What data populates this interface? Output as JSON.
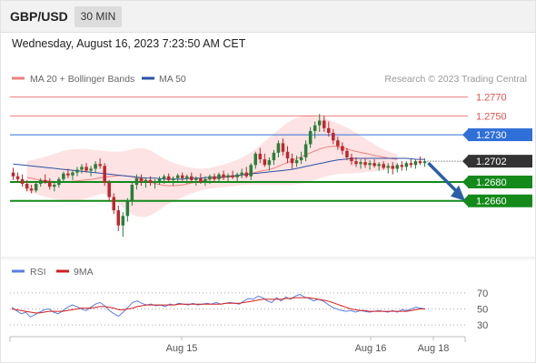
{
  "header": {
    "symbol": "GBP/USD",
    "timeframe": "30 MIN"
  },
  "datetime": "Wednesday, August 16, 2023 7:23:50 AM CET",
  "colors": {
    "bollinger": "#f08080",
    "bollinger_fill": "#fde3e3",
    "ma50": "#2a52a8",
    "up": "#26803a",
    "down": "#c0262c",
    "resistance": "#e84f4f",
    "pivot_line": "#2f6fd8",
    "support": "#138a1a",
    "rsi": "#5b7fe0",
    "rsi_ma": "#d42020",
    "arrow": "#2a5fa8"
  },
  "legend": {
    "bollinger": "MA 20 + Bollinger Bands",
    "ma50": "MA 50",
    "copyright": "Research © 2023 Trading Central"
  },
  "chart_data": {
    "type": "candlestick",
    "y_range": [
      1.26,
      1.2785
    ],
    "levels": [
      {
        "value": 1.277,
        "label": "1.2770",
        "kind": "resistance"
      },
      {
        "value": 1.275,
        "label": "1.2750",
        "kind": "resistance"
      },
      {
        "value": 1.273,
        "label": "1.2730",
        "kind": "pivot"
      },
      {
        "value": 1.268,
        "label": "1.2680",
        "kind": "support"
      },
      {
        "value": 1.266,
        "label": "1.2660",
        "kind": "support"
      }
    ],
    "last_price": {
      "value": 1.2702,
      "label": "1.2702"
    },
    "forecast_arrow": {
      "from": 1.2702,
      "to": 1.266
    },
    "x_labels": [
      "Aug 15",
      "Aug 16",
      "Aug 18"
    ],
    "candles": [
      [
        1.269,
        1.2695,
        1.2682,
        1.2686
      ],
      [
        1.2686,
        1.269,
        1.268,
        1.2683
      ],
      [
        1.2683,
        1.2688,
        1.2675,
        1.2678
      ],
      [
        1.2678,
        1.2682,
        1.267,
        1.2673
      ],
      [
        1.2673,
        1.2677,
        1.2668,
        1.2671
      ],
      [
        1.2671,
        1.268,
        1.2669,
        1.2678
      ],
      [
        1.2678,
        1.2684,
        1.2675,
        1.2682
      ],
      [
        1.2682,
        1.2688,
        1.2678,
        1.268
      ],
      [
        1.268,
        1.2684,
        1.2672,
        1.2675
      ],
      [
        1.2675,
        1.2679,
        1.267,
        1.2677
      ],
      [
        1.2677,
        1.2685,
        1.2674,
        1.2683
      ],
      [
        1.2683,
        1.2691,
        1.268,
        1.2689
      ],
      [
        1.2689,
        1.2694,
        1.2684,
        1.2687
      ],
      [
        1.2687,
        1.2692,
        1.2682,
        1.269
      ],
      [
        1.269,
        1.2696,
        1.2686,
        1.2693
      ],
      [
        1.2693,
        1.2699,
        1.2689,
        1.2696
      ],
      [
        1.2696,
        1.27,
        1.269,
        1.2692
      ],
      [
        1.2692,
        1.2697,
        1.2686,
        1.2694
      ],
      [
        1.2694,
        1.2702,
        1.269,
        1.2699
      ],
      [
        1.2699,
        1.2705,
        1.2694,
        1.2697
      ],
      [
        1.2697,
        1.27,
        1.2676,
        1.2679
      ],
      [
        1.2679,
        1.2682,
        1.266,
        1.2664
      ],
      [
        1.2664,
        1.2668,
        1.2646,
        1.265
      ],
      [
        1.265,
        1.2655,
        1.2628,
        1.2634
      ],
      [
        1.2634,
        1.2648,
        1.2622,
        1.2644
      ],
      [
        1.2644,
        1.2663,
        1.2638,
        1.266
      ],
      [
        1.266,
        1.268,
        1.2655,
        1.2677
      ],
      [
        1.2677,
        1.2688,
        1.2672,
        1.2684
      ],
      [
        1.2684,
        1.2688,
        1.2676,
        1.268
      ],
      [
        1.268,
        1.2685,
        1.2674,
        1.2682
      ],
      [
        1.2682,
        1.2686,
        1.2676,
        1.2679
      ],
      [
        1.2679,
        1.2683,
        1.2673,
        1.2681
      ],
      [
        1.2681,
        1.2686,
        1.2677,
        1.2683
      ],
      [
        1.2683,
        1.2688,
        1.2678,
        1.2686
      ],
      [
        1.2686,
        1.2689,
        1.268,
        1.2682
      ],
      [
        1.2682,
        1.2686,
        1.2676,
        1.2684
      ],
      [
        1.2684,
        1.2689,
        1.2679,
        1.2687
      ],
      [
        1.2687,
        1.269,
        1.2681,
        1.2684
      ],
      [
        1.2684,
        1.2688,
        1.2678,
        1.2686
      ],
      [
        1.2686,
        1.269,
        1.268,
        1.2682
      ],
      [
        1.2682,
        1.2686,
        1.2676,
        1.2684
      ],
      [
        1.2684,
        1.2689,
        1.2678,
        1.268
      ],
      [
        1.268,
        1.2686,
        1.2676,
        1.2683
      ],
      [
        1.2683,
        1.2688,
        1.2678,
        1.2686
      ],
      [
        1.2686,
        1.2689,
        1.268,
        1.2683
      ],
      [
        1.2683,
        1.269,
        1.268,
        1.2688
      ],
      [
        1.2688,
        1.2692,
        1.2682,
        1.2685
      ],
      [
        1.2685,
        1.2689,
        1.2679,
        1.2687
      ],
      [
        1.2687,
        1.2692,
        1.2683,
        1.2685
      ],
      [
        1.2685,
        1.269,
        1.2681,
        1.2688
      ],
      [
        1.2688,
        1.2694,
        1.2684,
        1.269
      ],
      [
        1.269,
        1.2696,
        1.2684,
        1.2686
      ],
      [
        1.2686,
        1.27,
        1.2682,
        1.2698
      ],
      [
        1.2698,
        1.2712,
        1.2694,
        1.271
      ],
      [
        1.271,
        1.2716,
        1.27,
        1.2704
      ],
      [
        1.2704,
        1.271,
        1.2696,
        1.2698
      ],
      [
        1.2698,
        1.2706,
        1.2692,
        1.2703
      ],
      [
        1.2703,
        1.2714,
        1.2698,
        1.2711
      ],
      [
        1.2711,
        1.2724,
        1.2706,
        1.2721
      ],
      [
        1.2721,
        1.2726,
        1.2708,
        1.2712
      ],
      [
        1.2712,
        1.2718,
        1.27,
        1.2705
      ],
      [
        1.2705,
        1.271,
        1.2694,
        1.27
      ],
      [
        1.27,
        1.2708,
        1.2696,
        1.2703
      ],
      [
        1.2703,
        1.2712,
        1.2699,
        1.2706
      ],
      [
        1.2706,
        1.2724,
        1.2702,
        1.272
      ],
      [
        1.272,
        1.2738,
        1.2716,
        1.2734
      ],
      [
        1.2734,
        1.2744,
        1.2726,
        1.274
      ],
      [
        1.274,
        1.2752,
        1.2733,
        1.2745
      ],
      [
        1.2745,
        1.275,
        1.2733,
        1.2737
      ],
      [
        1.2737,
        1.2744,
        1.2728,
        1.2732
      ],
      [
        1.2732,
        1.2736,
        1.272,
        1.2724
      ],
      [
        1.2724,
        1.2728,
        1.2714,
        1.2718
      ],
      [
        1.2718,
        1.2722,
        1.2709,
        1.2713
      ],
      [
        1.2713,
        1.2716,
        1.2703,
        1.2706
      ],
      [
        1.2706,
        1.271,
        1.2698,
        1.2702
      ],
      [
        1.2702,
        1.2706,
        1.2696,
        1.2699
      ],
      [
        1.2699,
        1.2704,
        1.2694,
        1.2701
      ],
      [
        1.2701,
        1.2705,
        1.2695,
        1.2698
      ],
      [
        1.2698,
        1.2703,
        1.2693,
        1.27
      ],
      [
        1.27,
        1.2704,
        1.2695,
        1.2697
      ],
      [
        1.2697,
        1.2701,
        1.2692,
        1.2699
      ],
      [
        1.2699,
        1.2702,
        1.2693,
        1.2695
      ],
      [
        1.2695,
        1.27,
        1.2689,
        1.2697
      ],
      [
        1.2697,
        1.2701,
        1.2688,
        1.2694
      ],
      [
        1.2694,
        1.27,
        1.269,
        1.2698
      ],
      [
        1.2698,
        1.2702,
        1.2692,
        1.2696
      ],
      [
        1.2696,
        1.2702,
        1.2692,
        1.27
      ],
      [
        1.27,
        1.2704,
        1.2695,
        1.2698
      ],
      [
        1.2698,
        1.2704,
        1.2694,
        1.2702
      ],
      [
        1.2702,
        1.2707,
        1.2698,
        1.27
      ],
      [
        1.27,
        1.2705,
        1.2696,
        1.2702
      ]
    ],
    "ma20": [
      1.2688,
      1.2686,
      1.2684,
      1.2682,
      1.2681,
      1.268,
      1.268,
      1.2681,
      1.2682,
      1.2683,
      1.2685,
      1.2686,
      1.2687,
      1.2686,
      1.2684,
      1.2681,
      1.2678,
      1.2676,
      1.2676,
      1.2677,
      1.2679,
      1.2681,
      1.2683,
      1.2684,
      1.2685,
      1.2686,
      1.2688,
      1.269,
      1.2692,
      1.2694,
      1.2698,
      1.2702,
      1.2706,
      1.271,
      1.2714,
      1.2717,
      1.2718,
      1.2716,
      1.2713,
      1.2711,
      1.2709,
      1.2707,
      1.2705,
      1.2704,
      1.2702,
      1.27,
      1.2699
    ],
    "bb_upper": [
      1.27,
      1.2701,
      1.2703,
      1.2705,
      1.2708,
      1.2711,
      1.2714,
      1.2715,
      1.2715,
      1.2714,
      1.2713,
      1.2712,
      1.2712,
      1.2714,
      1.2716,
      1.2715,
      1.271,
      1.2704,
      1.27,
      1.2697,
      1.2695,
      1.2694,
      1.2695,
      1.2697,
      1.27,
      1.2703,
      1.2708,
      1.2714,
      1.2722,
      1.273,
      1.2738,
      1.2745,
      1.2749,
      1.2751,
      1.275,
      1.2747,
      1.2743,
      1.2739,
      1.2734,
      1.2728,
      1.2722,
      1.2716,
      1.2712,
      1.2709,
      1.2707,
      1.2706,
      1.2706
    ],
    "bb_lower": [
      1.2676,
      1.2673,
      1.2669,
      1.2666,
      1.2663,
      1.2661,
      1.266,
      1.266,
      1.2662,
      1.2665,
      1.2668,
      1.2664,
      1.2655,
      1.2647,
      1.2643,
      1.2643,
      1.2648,
      1.2655,
      1.266,
      1.2664,
      1.2668,
      1.2671,
      1.2673,
      1.2674,
      1.2675,
      1.2676,
      1.2677,
      1.2677,
      1.2677,
      1.2677,
      1.2677,
      1.2677,
      1.2678,
      1.268,
      1.2683,
      1.2686,
      1.2688,
      1.2689,
      1.2689,
      1.269,
      1.2691,
      1.2692,
      1.2693,
      1.2694,
      1.2694,
      1.2694,
      1.2693
    ],
    "ma50": [
      1.2699,
      1.2698,
      1.2697,
      1.2696,
      1.2695,
      1.2694,
      1.2693,
      1.2692,
      1.2691,
      1.269,
      1.2689,
      1.2688,
      1.2687,
      1.2686,
      1.2685,
      1.2684,
      1.2684,
      1.2683,
      1.2683,
      1.2683,
      1.2684,
      1.2684,
      1.2685,
      1.2685,
      1.2686,
      1.2687,
      1.2688,
      1.2689,
      1.269,
      1.2691,
      1.2692,
      1.2693,
      1.2695,
      1.2697,
      1.2699,
      1.2701,
      1.2703,
      1.2704,
      1.2705,
      1.2705,
      1.2705,
      1.2705,
      1.2705,
      1.2705,
      1.2705,
      1.2704,
      1.2704
    ],
    "rsi_panel": {
      "legend_rsi": "RSI",
      "legend_ma": "9MA",
      "y_range": [
        20,
        80
      ],
      "y_ticks": [
        70,
        50,
        30
      ],
      "rsi": [
        52,
        48,
        44,
        46,
        40,
        43,
        46,
        49,
        50,
        46,
        44,
        48,
        52,
        55,
        53,
        50,
        48,
        52,
        56,
        58,
        54,
        48,
        44,
        41,
        46,
        52,
        58,
        60,
        57,
        55,
        56,
        54,
        55,
        53,
        56,
        55,
        57,
        56,
        55,
        57,
        55,
        56,
        57,
        56,
        58,
        56,
        57,
        58,
        57,
        56,
        60,
        63,
        62,
        66,
        64,
        60,
        58,
        64,
        60,
        65,
        62,
        66,
        68,
        65,
        63,
        60,
        62,
        60,
        56,
        52,
        50,
        48,
        47,
        48,
        46,
        48,
        47,
        46,
        47,
        48,
        47,
        46,
        48,
        46,
        49,
        48,
        50,
        52,
        51,
        50
      ],
      "rsi_ma": [
        50,
        49,
        48,
        47,
        46,
        45,
        45,
        46,
        47,
        47,
        47,
        47,
        48,
        49,
        50,
        51,
        51,
        51,
        52,
        53,
        53,
        52,
        51,
        49,
        49,
        50,
        51,
        53,
        54,
        55,
        55,
        55,
        55,
        55,
        55,
        55,
        56,
        56,
        56,
        56,
        56,
        56,
        56,
        56,
        56,
        56,
        57,
        57,
        57,
        57,
        58,
        59,
        60,
        61,
        62,
        62,
        62,
        62,
        62,
        63,
        63,
        64,
        64,
        64,
        64,
        63,
        62,
        61,
        60,
        58,
        56,
        54,
        52,
        50,
        49,
        48,
        48,
        47,
        47,
        47,
        47,
        47,
        47,
        47,
        47,
        47,
        48,
        49,
        50,
        50
      ]
    }
  }
}
